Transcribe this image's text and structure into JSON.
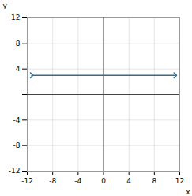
{
  "chart_data": {
    "type": "line",
    "x": [
      -11.3,
      11.3
    ],
    "values": [
      3,
      3
    ],
    "color": "#2e6e8e",
    "marker": "arrow",
    "xlabel": "x",
    "ylabel": "y",
    "xlim": [
      -12,
      12
    ],
    "ylim": [
      -12,
      12
    ],
    "xticks": [
      -12,
      -8,
      -4,
      0,
      4,
      8,
      12
    ],
    "yticks": [
      -12,
      -8,
      -4,
      {
        "value": 0,
        "label": ""
      },
      4,
      8,
      12
    ],
    "grid": true
  }
}
